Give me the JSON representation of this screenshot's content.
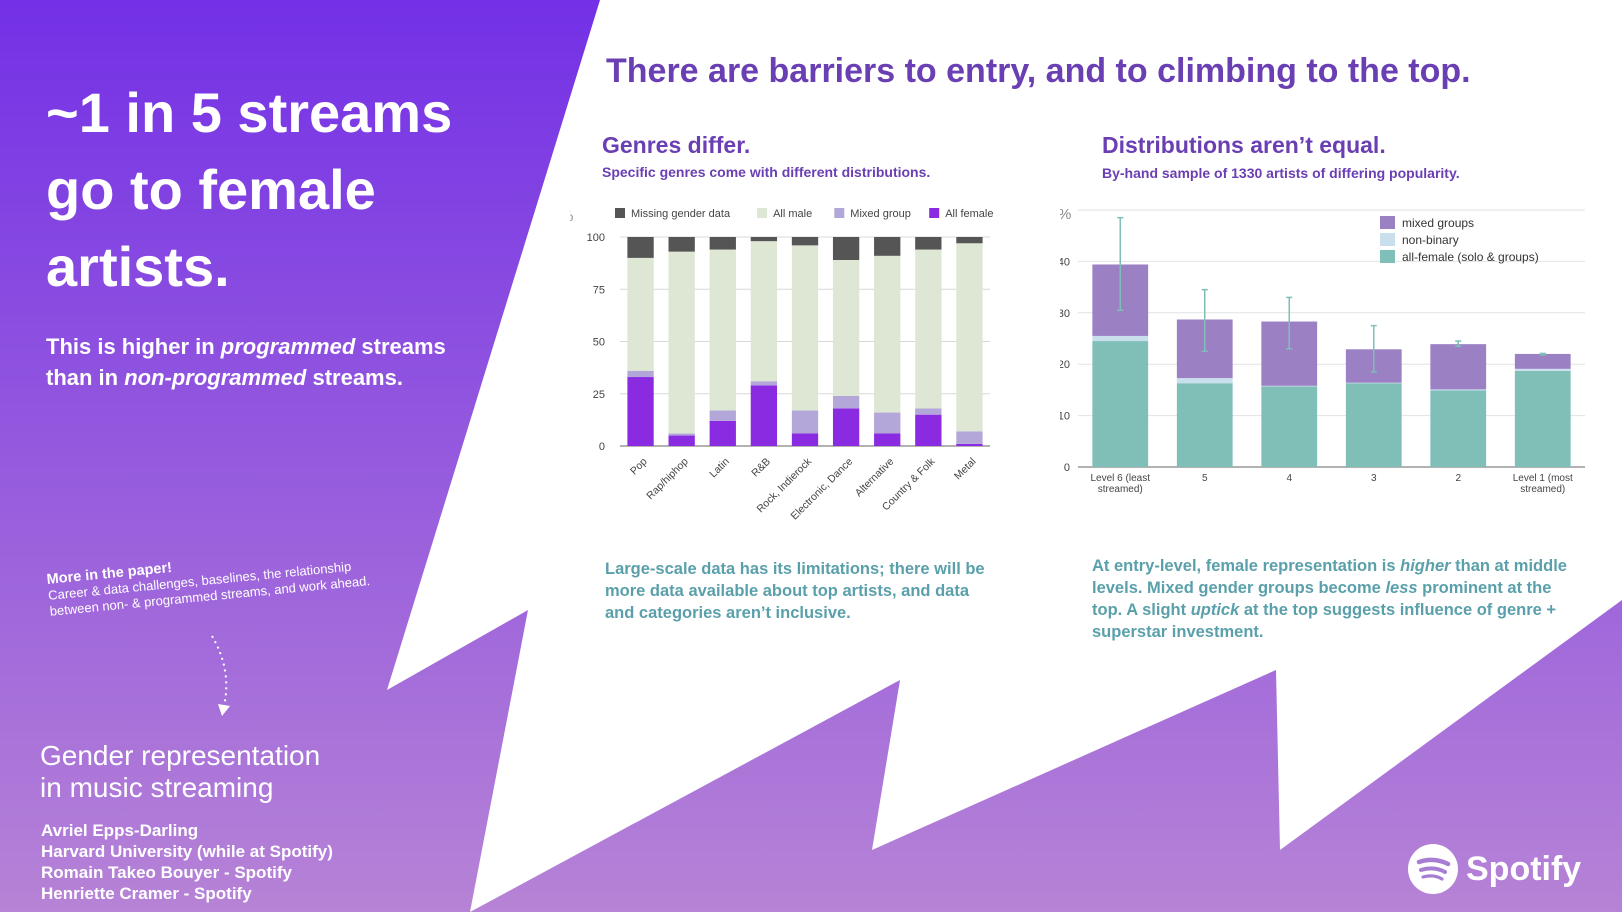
{
  "left_panel": {
    "headline": [
      "~1 in 5 streams",
      "go to female",
      "artists."
    ],
    "subtext": {
      "part1": "This is higher in ",
      "em1": "programmed",
      "part2": " streams than in ",
      "em2": "non-programmed",
      "part3": " streams."
    },
    "more": {
      "title": "More in the paper!",
      "lines": [
        "Career & data challenges, baselines, the relationship",
        "between non- & programmed streams, and work ahead."
      ]
    },
    "paper_title": [
      "Gender representation",
      "in music streaming"
    ],
    "authors": [
      "Avriel Epps-Darling",
      "Harvard University (while at Spotify)",
      "Romain Takeo Bouyer - Spotify",
      "Henriette Cramer - Spotify"
    ]
  },
  "main_headline": "There are barriers to entry, and to climbing to the top.",
  "genres": {
    "title": "Genres differ.",
    "subtitle": "Specific genres come with different distributions.",
    "note": "Large-scale data has its limitations; there will be more data available about top artists, and data and categories aren’t inclusive."
  },
  "distributions": {
    "title": "Distributions aren’t equal.",
    "subtitle": "By-hand sample of 1330 artists of differing popularity.",
    "note": {
      "p1": "At entry-level, female representation is ",
      "e1": "higher",
      "p2": " than at middle levels. Mixed gender groups become ",
      "e2": "less",
      "p3": " prominent at the top. A slight ",
      "e3": "uptick",
      "p4": " at the top suggests influence of genre + superstar investment."
    }
  },
  "brand": "Spotify",
  "colors": {
    "purple_dark": "#7330e6",
    "purple_light": "#b683d6",
    "heading": "#6a3fb3",
    "note": "#5aa0ab"
  },
  "chart_data": [
    {
      "type": "bar",
      "stacked": true,
      "ylabel": "%",
      "ylim": [
        0,
        100
      ],
      "yticks": [
        0,
        25,
        50,
        75,
        100
      ],
      "legend_position": "top",
      "categories": [
        "Pop",
        "Rap/hiphop",
        "Latin",
        "R&B",
        "Rock, Indierock",
        "Electronic, Dance",
        "Alternative",
        "Country & Folk",
        "Metal"
      ],
      "series": [
        {
          "name": "All female",
          "color": "#8a2be2",
          "values": [
            33,
            5,
            12,
            29,
            6,
            18,
            6,
            15,
            1
          ]
        },
        {
          "name": "Mixed group",
          "color": "#b3a6d9",
          "values": [
            3,
            1,
            5,
            2,
            11,
            6,
            10,
            3,
            6
          ]
        },
        {
          "name": "All male",
          "color": "#dde7d3",
          "values": [
            54,
            87,
            77,
            67,
            79,
            65,
            75,
            76,
            90
          ]
        },
        {
          "name": "Missing gender data",
          "color": "#555555",
          "values": [
            10,
            7,
            6,
            2,
            4,
            11,
            9,
            6,
            3
          ]
        }
      ]
    },
    {
      "type": "bar",
      "stacked": true,
      "ylabel": "%",
      "ylim": [
        0,
        50
      ],
      "yticks": [
        0,
        10,
        20,
        30,
        40
      ],
      "legend_position": "top-right",
      "categories": [
        "Level 6 (least streamed)",
        "5",
        "4",
        "3",
        "2",
        "Level 1 (most streamed)"
      ],
      "series": [
        {
          "name": "all-female (solo & groups)",
          "color": "#7fbfb8",
          "values": [
            24.5,
            16.3,
            15.7,
            16.3,
            14.9,
            18.7
          ]
        },
        {
          "name": "non-binary",
          "color": "#c9dfee",
          "values": [
            1.0,
            1.0,
            0.1,
            0.1,
            0.2,
            0.4
          ]
        },
        {
          "name": "mixed groups",
          "color": "#9b80c4",
          "values": [
            13.9,
            11.4,
            12.5,
            6.5,
            8.8,
            2.9
          ]
        }
      ],
      "error_bars": [
        [
          30.5,
          48.5
        ],
        [
          22.5,
          34.5
        ],
        [
          23,
          33
        ],
        [
          18.5,
          27.5
        ],
        [
          23.5,
          24.5
        ],
        [
          21.8,
          22.1
        ]
      ]
    }
  ]
}
